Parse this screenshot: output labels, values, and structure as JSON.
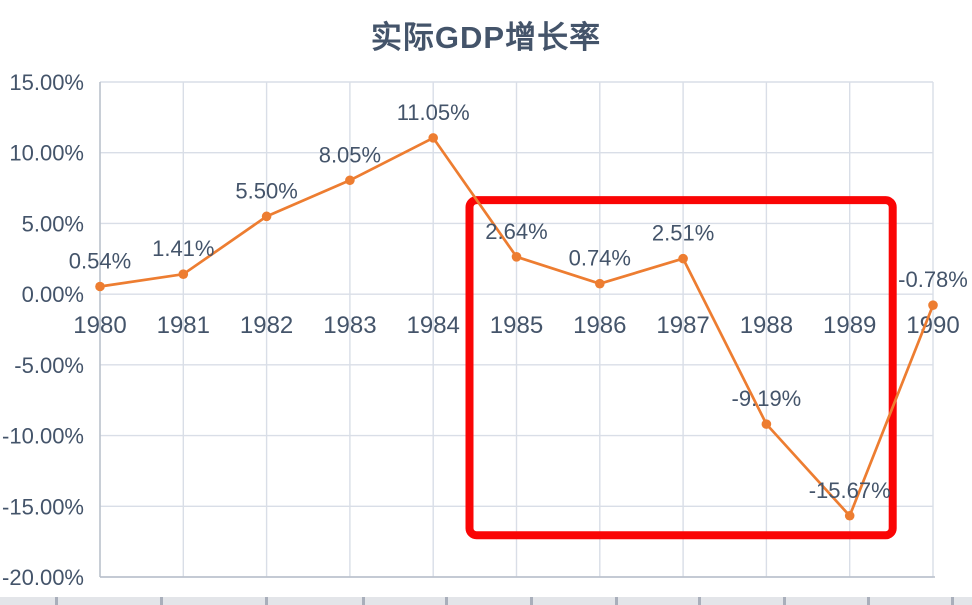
{
  "chart_data": {
    "type": "line",
    "title": "实际GDP增长率",
    "categories": [
      "1980",
      "1981",
      "1982",
      "1983",
      "1984",
      "1985",
      "1986",
      "1987",
      "1988",
      "1989",
      "1990"
    ],
    "values": [
      0.54,
      1.41,
      5.5,
      8.05,
      11.05,
      2.64,
      0.74,
      2.51,
      -9.19,
      -15.67,
      -0.78
    ],
    "data_labels": [
      "0.54%",
      "1.41%",
      "5.50%",
      "8.05%",
      "11.05%",
      "2.64%",
      "0.74%",
      "2.51%",
      "-9.19%",
      "-15.67%",
      "-0.78%"
    ],
    "y_ticks": [
      {
        "value": 15,
        "label": "15.00%"
      },
      {
        "value": 10,
        "label": "10.00%"
      },
      {
        "value": 5,
        "label": "5.00%"
      },
      {
        "value": 0,
        "label": "0.00%"
      },
      {
        "value": -5,
        "label": "-5.00%"
      },
      {
        "value": -10,
        "label": "-10.00%"
      },
      {
        "value": -15,
        "label": "-15.00%"
      },
      {
        "value": -20,
        "label": "-20.00%"
      }
    ],
    "ylim": [
      -20,
      15
    ],
    "xlabel": "",
    "ylabel": "",
    "grid": true,
    "legend": "none",
    "line_color": "#ED7D31",
    "marker": "circle",
    "annotation": {
      "shape": "rectangle",
      "stroke_color": "#FA0505",
      "stroke_width": 8,
      "highlights_from_category": "1985",
      "highlights_to_category": "1989",
      "y_top_pct": 6.65,
      "y_bottom_pct": -17.05
    },
    "colors": {
      "text": "#44546A",
      "gridline": "#D9DEE7",
      "axis": "#B7BEC9",
      "background": "#FFFFFF",
      "sheet_band": "#E3E5E9",
      "sheet_tick": "#A9AFBB"
    }
  }
}
